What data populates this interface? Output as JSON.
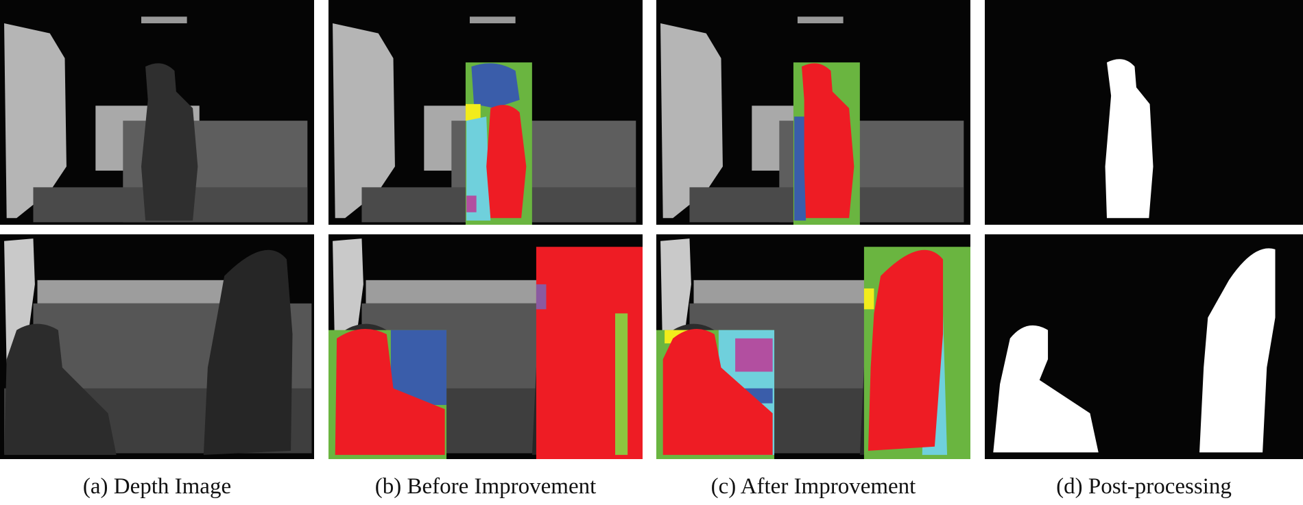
{
  "figure": {
    "captions": [
      "(a) Depth Image",
      "(b) Before Improvement",
      "(c) After Improvement",
      "(d) Post-processing"
    ],
    "colors": {
      "background": "#050505",
      "person_label": "#ee1c24",
      "bounding_box": "#6ab540",
      "segment_blue": "#3a5daa",
      "segment_cyan": "#6fd0dc",
      "segment_yellow": "#f2ec1c",
      "segment_magenta": "#b24fa0",
      "mask_foreground": "#ffffff"
    }
  }
}
